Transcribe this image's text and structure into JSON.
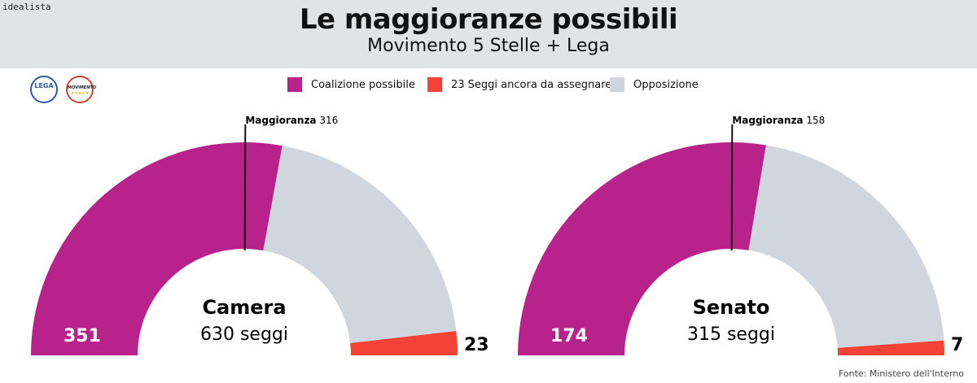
{
  "brand": "idealista",
  "title": "Le maggioranze possibili",
  "subtitle": "Movimento 5 Stelle + Lega",
  "logos": [
    {
      "name": "lega-logo",
      "text": "LEGA",
      "color": "#2c5aa8"
    },
    {
      "name": "m5s-logo",
      "text": "MOVIMENTO",
      "color": "#d8412f"
    }
  ],
  "legend": [
    {
      "label": "Coalizione possibile",
      "color": "#b7238a"
    },
    {
      "label": "23 Seggi ancora da assegnare",
      "color": "#f44336"
    },
    {
      "label": "Opposizione",
      "color": "#d0d6de"
    }
  ],
  "chart_data": [
    {
      "type": "pie",
      "subtype": "semicircle",
      "name": "Camera",
      "total_label": "630 seggi",
      "total": 630,
      "majority_label": "Maggioranza",
      "majority_value": "316",
      "majority": 316,
      "segments": [
        {
          "label": "Coalizione possibile",
          "value": 351,
          "color": "#b7238a",
          "value_label": "351"
        },
        {
          "label": "Opposizione",
          "value": 256,
          "color": "#d0d6de",
          "value_label": ""
        },
        {
          "label": "Seggi ancora da assegnare",
          "value": 23,
          "color": "#f44336",
          "value_label": "23"
        }
      ]
    },
    {
      "type": "pie",
      "subtype": "semicircle",
      "name": "Senato",
      "total_label": "315 seggi",
      "total": 315,
      "majority_label": "Maggioranza",
      "majority_value": "158",
      "majority": 158,
      "segments": [
        {
          "label": "Coalizione possibile",
          "value": 174,
          "color": "#b7238a",
          "value_label": "174"
        },
        {
          "label": "Opposizione",
          "value": 134,
          "color": "#d0d6de",
          "value_label": ""
        },
        {
          "label": "Seggi ancora da assegnare",
          "value": 7,
          "color": "#f44336",
          "value_label": "7"
        }
      ]
    }
  ],
  "source": "Fonte: Ministero dell'Interno"
}
